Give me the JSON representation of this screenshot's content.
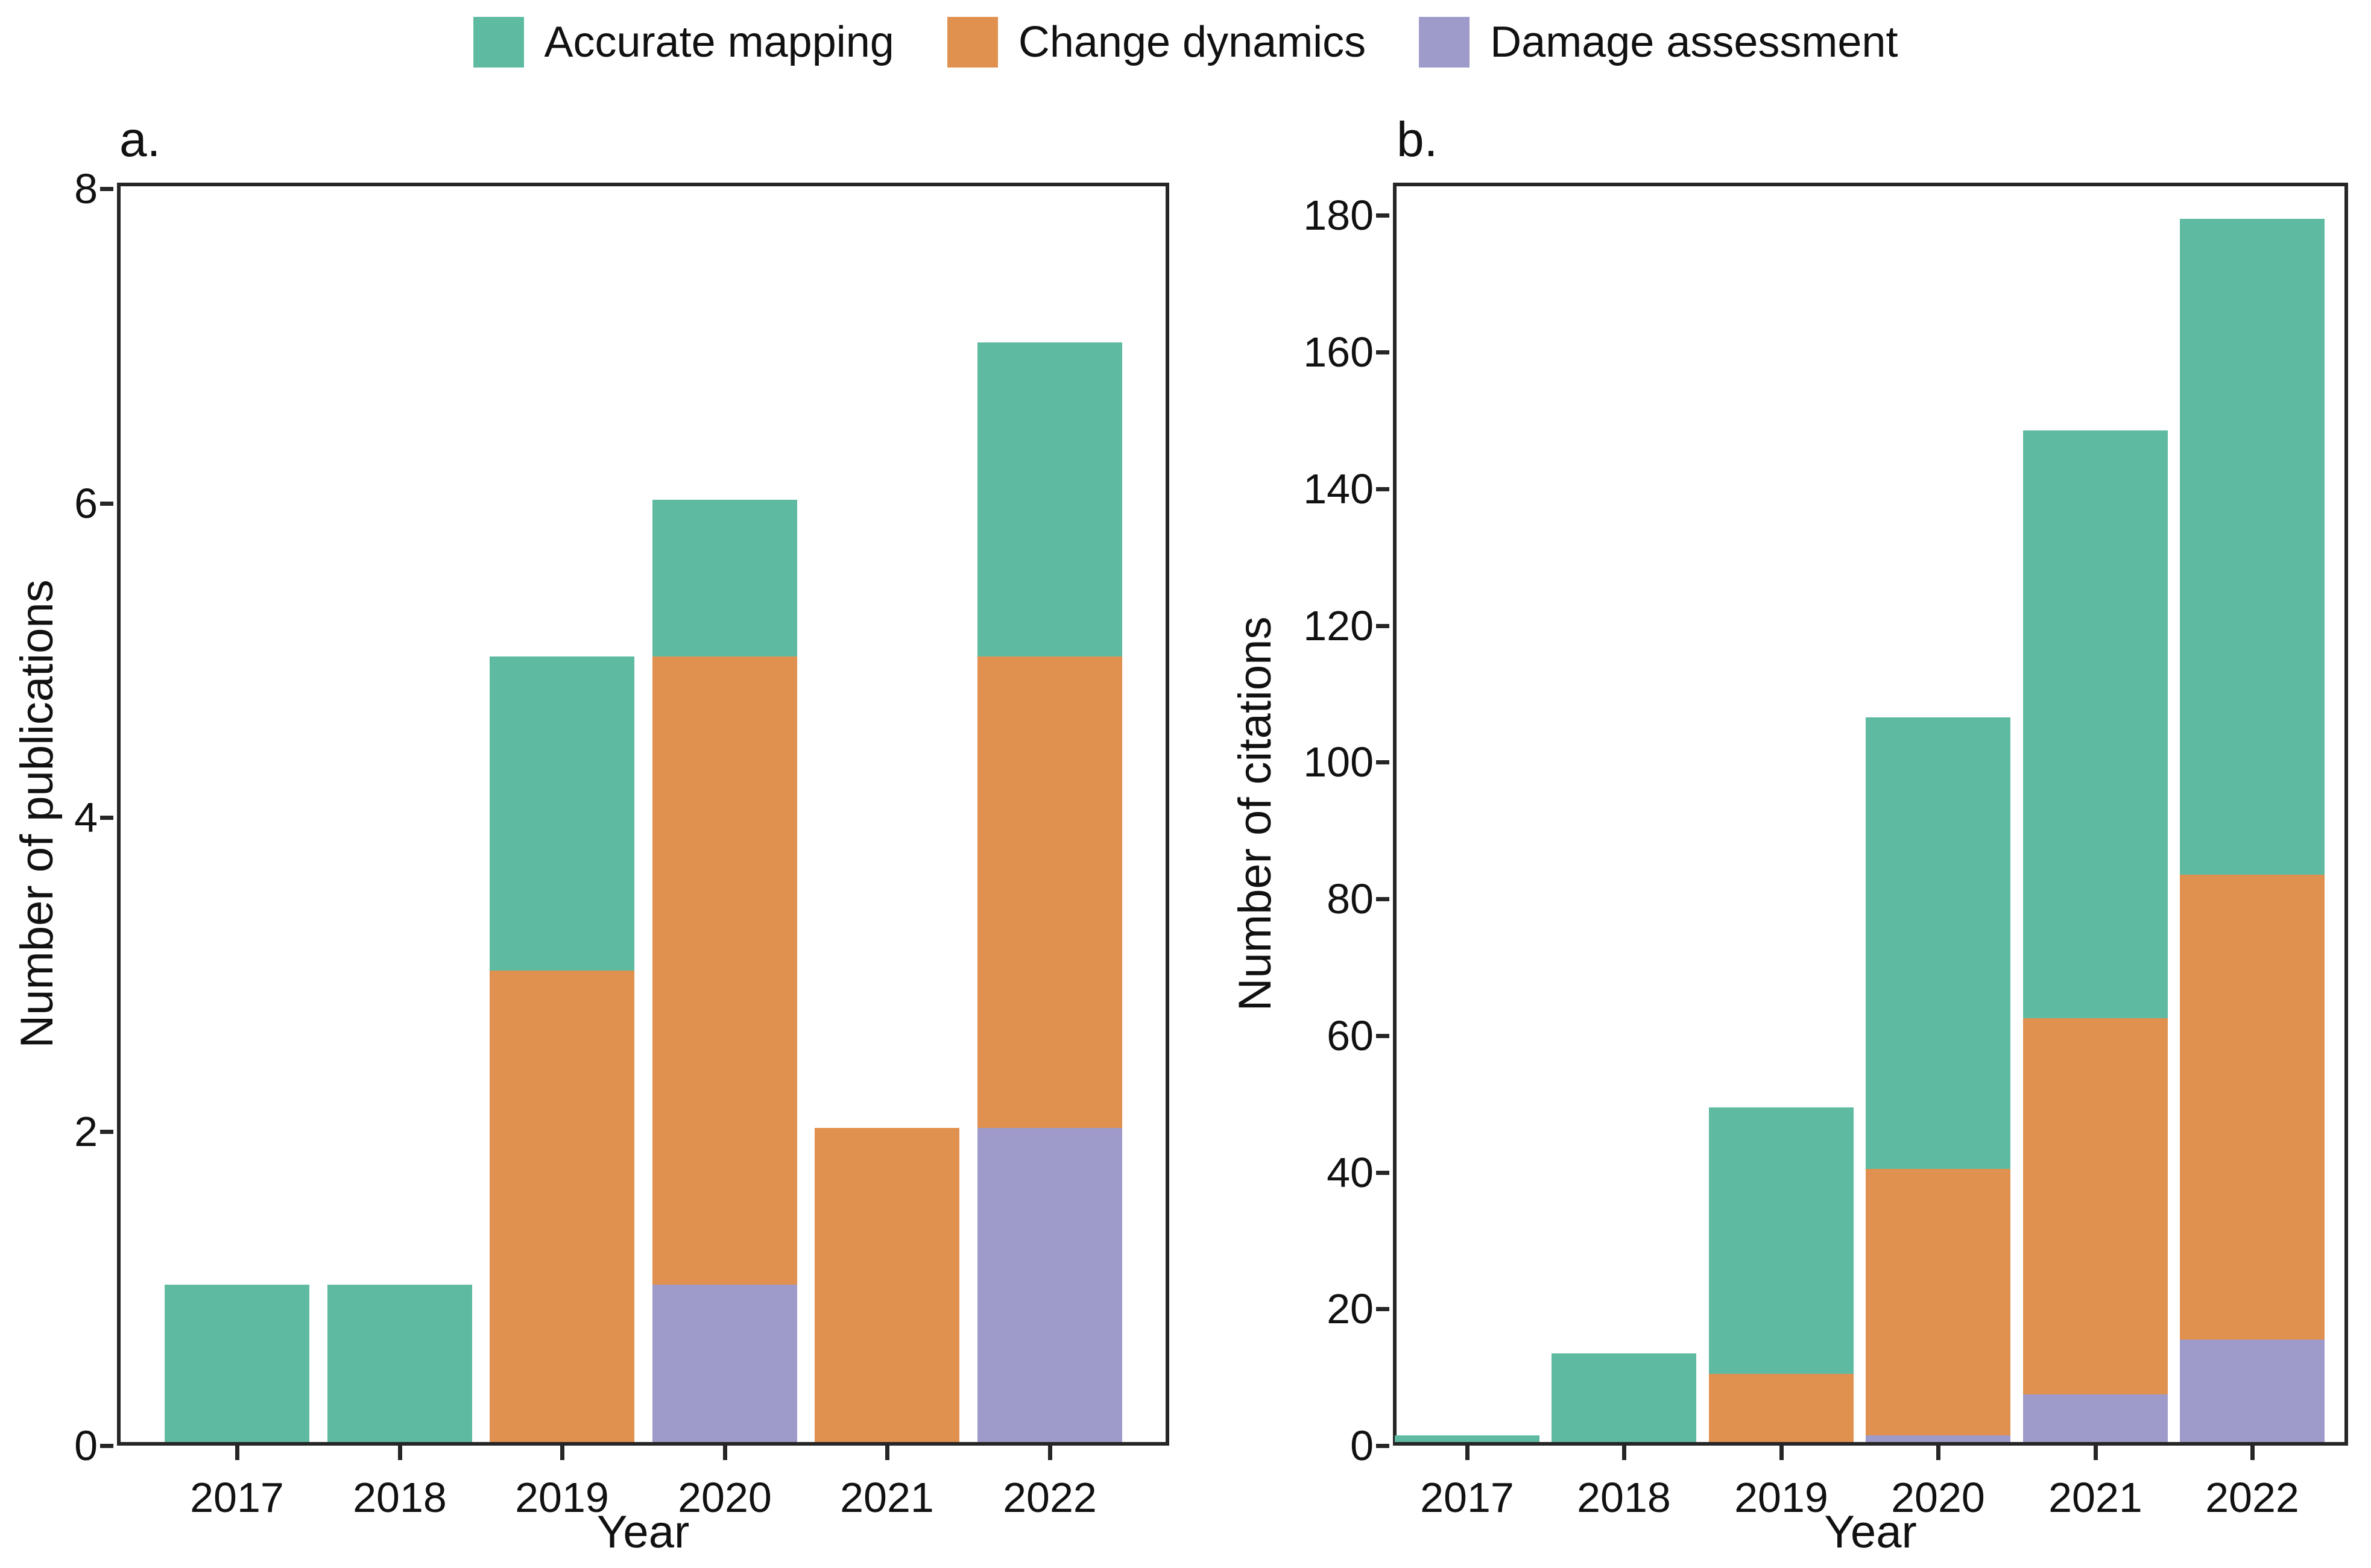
{
  "colors": {
    "accurate_mapping": "#5EBBA1",
    "change_dynamics": "#E1914F",
    "damage_assessment": "#9E9BCA",
    "axis_line": "#262626",
    "text": "#111111",
    "background": "#FFFFFF"
  },
  "legend": {
    "position": "top-center",
    "items": [
      {
        "label": "Accurate mapping",
        "color": "#5EBBA1"
      },
      {
        "label": "Change dynamics",
        "color": "#E1914F"
      },
      {
        "label": "Damage assessment",
        "color": "#9E9BCA"
      }
    ]
  },
  "chart_data": [
    {
      "panel": "a.",
      "type": "bar",
      "stacked": true,
      "xlabel": "Year",
      "ylabel": "Number of publications",
      "categories": [
        "2017",
        "2018",
        "2019",
        "2020",
        "2021",
        "2022"
      ],
      "yticks": [
        0,
        2,
        4,
        6,
        8
      ],
      "ylim": [
        0,
        8
      ],
      "grid": false,
      "legend_position": "top",
      "stack_order_bottom_to_top": [
        "Damage assessment",
        "Change dynamics",
        "Accurate mapping"
      ],
      "series": [
        {
          "name": "Damage assessment",
          "color": "#9E9BCA",
          "values": [
            0,
            0,
            0,
            1,
            0,
            2
          ]
        },
        {
          "name": "Change dynamics",
          "color": "#E1914F",
          "values": [
            0,
            0,
            3,
            4,
            2,
            3
          ]
        },
        {
          "name": "Accurate mapping",
          "color": "#5EBBA1",
          "values": [
            1,
            1,
            2,
            1,
            0,
            2
          ]
        }
      ],
      "totals": [
        1,
        1,
        5,
        6,
        2,
        7
      ]
    },
    {
      "panel": "b.",
      "type": "bar",
      "stacked": true,
      "xlabel": "Year",
      "ylabel": "Number of citations",
      "categories": [
        "2017",
        "2018",
        "2019",
        "2020",
        "2021",
        "2022"
      ],
      "yticks": [
        0,
        20,
        40,
        60,
        80,
        100,
        120,
        140,
        160,
        180
      ],
      "ylim": [
        0,
        185
      ],
      "grid": false,
      "legend_position": "top",
      "stack_order_bottom_to_top": [
        "Damage assessment",
        "Change dynamics",
        "Accurate mapping"
      ],
      "series": [
        {
          "name": "Damage assessment",
          "color": "#9E9BCA",
          "values": [
            0,
            0,
            0,
            1,
            7,
            15
          ]
        },
        {
          "name": "Change dynamics",
          "color": "#E1914F",
          "values": [
            0,
            0,
            10,
            39,
            55,
            68
          ]
        },
        {
          "name": "Accurate mapping",
          "color": "#5EBBA1",
          "values": [
            1,
            13,
            39,
            66,
            86,
            96
          ]
        }
      ],
      "totals": [
        1,
        13,
        49,
        106,
        148,
        179
      ]
    }
  ]
}
